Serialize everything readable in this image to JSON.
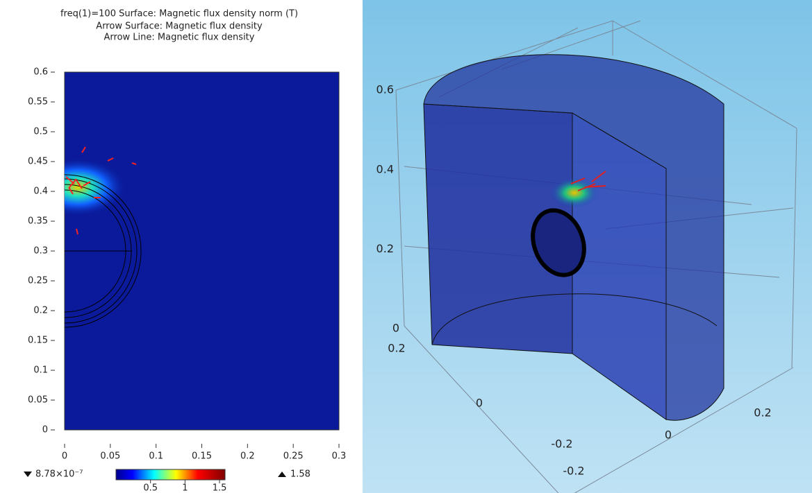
{
  "chart_data": [
    {
      "type": "surface",
      "title": [
        "freq(1)=100   Surface: Magnetic flux density norm (T)",
        "Arrow Surface: Magnetic flux density",
        "Arrow Line: Magnetic flux density"
      ],
      "xlim": [
        0,
        0.3
      ],
      "ylim": [
        0,
        0.6
      ],
      "xticks": [
        0,
        0.05,
        0.1,
        0.15,
        0.2,
        0.25,
        0.3
      ],
      "yticks": [
        0,
        0.05,
        0.1,
        0.15,
        0.2,
        0.25,
        0.3,
        0.35,
        0.4,
        0.45,
        0.5,
        0.55,
        0.6
      ],
      "clim": [
        {
          "value": 8.78e-07,
          "label": "8.78×10⁻⁷"
        },
        1.58
      ],
      "cticks": [
        0.5,
        1,
        1.5
      ]
    },
    {
      "type": "surface3d",
      "xticks": [
        -0.2,
        0,
        0.2
      ],
      "yticks": [
        -0.2,
        0,
        0.2
      ],
      "zticks": [
        0,
        0.2,
        0.4,
        0.6
      ]
    }
  ]
}
